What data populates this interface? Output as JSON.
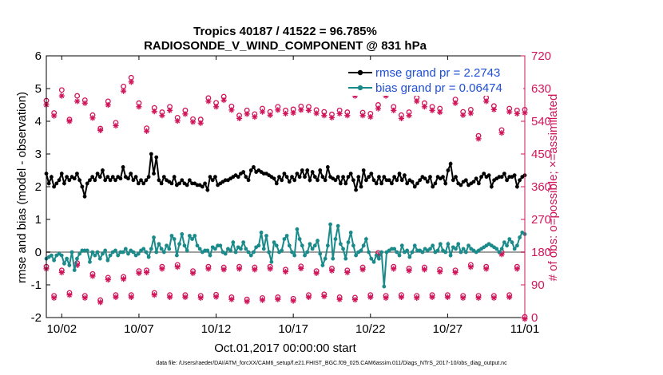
{
  "chart_data": {
    "type": "line",
    "title_line1": "Tropics 40187 / 41522 = 96.785%",
    "title_line2": "RADIOSONDE_V_WIND_COMPONENT @ 831 hPa",
    "xlabel": "Oct.01,2017 00:00:00 start",
    "ylabel_left": "rmse and bias (model - observation)",
    "ylabel_right": "# of obs: o=possible; ×=assimilated",
    "footnote": "data file: /Users/raeder/DAI/ATM_forcXX/CAM6_setup/f.e21.FHIST_BGC.f09_025.CAM6assim.011/Diags_NTrS_2017-10/obs_diag_output.nc",
    "x_ticks": [
      {
        "x": 1.5,
        "label": "10/02"
      },
      {
        "x": 6.5,
        "label": "10/07"
      },
      {
        "x": 11.5,
        "label": "10/12"
      },
      {
        "x": 16.5,
        "label": "10/17"
      },
      {
        "x": 21.5,
        "label": "10/22"
      },
      {
        "x": 26.5,
        "label": "10/27"
      },
      {
        "x": 31.5,
        "label": "11/01"
      }
    ],
    "xlim": [
      0.5,
      31.5
    ],
    "ylim_left": [
      -2,
      6
    ],
    "y_ticks_left": [
      "-2",
      "-1",
      "0",
      "1",
      "2",
      "3",
      "4",
      "5",
      "6"
    ],
    "ylim_right": [
      0,
      720
    ],
    "y_ticks_right": [
      "0",
      "90",
      "180",
      "270",
      "360",
      "450",
      "540",
      "630",
      "720"
    ],
    "legend": [
      {
        "label": "rmse grand pr = 2.2743",
        "color": "#000000"
      },
      {
        "label": "bias grand pr = 0.06474",
        "color": "#1a8a8a"
      }
    ],
    "colors": {
      "rmse": "#000000",
      "bias": "#1a8a8a",
      "obs": "#d0155a",
      "zero_line": "#a0a0a0",
      "right_axis": "#d0155a"
    },
    "series": [
      {
        "name": "rmse",
        "values": [
          2.4,
          2.1,
          2.3,
          2.0,
          2.1,
          2.2,
          2.4,
          2.1,
          2.3,
          2.2,
          2.3,
          2.25,
          2.4,
          2.2,
          2.0,
          1.7,
          2.1,
          2.2,
          2.3,
          2.2,
          2.4,
          2.3,
          2.5,
          2.2,
          2.3,
          2.2,
          2.3,
          2.2,
          2.3,
          2.25,
          2.6,
          2.3,
          2.25,
          2.4,
          2.2,
          2.3,
          2.1,
          2.2,
          2.1,
          2.2,
          2.3,
          3.0,
          2.4,
          2.9,
          2.2,
          2.1,
          2.3,
          2.2,
          2.15,
          2.1,
          2.3,
          2.05,
          2.1,
          2.2,
          2.1,
          2.05,
          2.2,
          2.1,
          2.1,
          2.05,
          2.05,
          2.0,
          2.1,
          1.9,
          2.3,
          2.2,
          2.3,
          2.05,
          2.1,
          2.15,
          2.2,
          2.2,
          2.25,
          2.3,
          2.35,
          2.3,
          2.4,
          2.45,
          2.3,
          2.2,
          2.5,
          2.6,
          2.45,
          2.5,
          2.45,
          2.4,
          2.4,
          2.35,
          2.3,
          2.25,
          2.1,
          2.3,
          2.2,
          2.4,
          2.3,
          2.15,
          2.3,
          2.2,
          2.4,
          2.3,
          2.5,
          2.3,
          2.5,
          2.2,
          2.45,
          2.3,
          2.2,
          2.5,
          2.3,
          2.2,
          2.6,
          2.3,
          2.25,
          2.2,
          2.3,
          2.1,
          2.3,
          2.1,
          2.3,
          2.4,
          2.2,
          1.9,
          2.3,
          2.0,
          2.5,
          2.2,
          2.3,
          2.4,
          2.2,
          2.1,
          2.3,
          2.1,
          2.3,
          2.2,
          2.2,
          2.1,
          2.3,
          2.2,
          2.4,
          2.2,
          2.35,
          2.1,
          2.2,
          2.15,
          2.0,
          2.1,
          2.2,
          2.3,
          2.25,
          2.15,
          2.3,
          2.0,
          2.1,
          2.3,
          2.25,
          2.3,
          2.1,
          2.5,
          2.7,
          2.2,
          2.3,
          2.1,
          2.05,
          2.15,
          2.2,
          2.05,
          2.1,
          2.15,
          2.25,
          2.1,
          2.3,
          2.4,
          2.3,
          2.35,
          2.0,
          2.2,
          2.25,
          2.3,
          2.3,
          2.4,
          2.2,
          2.3,
          2.3,
          2.35,
          2.0,
          2.2,
          2.3,
          2.35
        ]
      },
      {
        "name": "bias",
        "values": [
          -0.2,
          -0.15,
          -0.1,
          -0.25,
          -0.1,
          -0.05,
          -0.1,
          -0.35,
          -0.2,
          -0.4,
          0.0,
          -0.55,
          -0.2,
          -0.05,
          0.05,
          0.05,
          0.05,
          -0.3,
          0.0,
          -0.1,
          0.0,
          -0.2,
          -0.05,
          0.05,
          -0.25,
          -0.1,
          0.0,
          0.05,
          -0.1,
          0.0,
          0.0,
          0.1,
          -0.05,
          0.05,
          0.0,
          -0.1,
          -0.05,
          0.05,
          0.1,
          0.0,
          -0.15,
          0.1,
          0.45,
          0.0,
          0.25,
          0.1,
          0.0,
          0.2,
          0.1,
          0.5,
          0.4,
          -0.1,
          0.25,
          0.55,
          0.2,
          0.05,
          0.5,
          0.4,
          0.5,
          0.2,
          0.1,
          0.0,
          0.05,
          0.05,
          -0.1,
          0.15,
          0.1,
          0.2,
          0.2,
          0.0,
          -0.05,
          0.1,
          0.05,
          0.3,
          0.0,
          0.15,
          0.1,
          0.3,
          0.1,
          0.0,
          -0.1,
          0.0,
          0.15,
          0.2,
          0.6,
          0.1,
          0.5,
          0.0,
          -0.3,
          0.3,
          0.2,
          0.0,
          0.05,
          0.4,
          0.5,
          0.2,
          0.0,
          -0.1,
          0.7,
          0.4,
          0.2,
          -0.1,
          0.0,
          0.25,
          0.1,
          0.2,
          0.35,
          -0.05,
          -0.4,
          -0.2,
          0.2,
          0.85,
          -0.2,
          0.4,
          0.8,
          0.25,
          0.1,
          -0.2,
          0.3,
          0.6,
          0.2,
          -0.1,
          0.0,
          0.05,
          0.2,
          0.4,
          0.0,
          -0.2,
          -0.3,
          -0.1,
          -0.2,
          0.0,
          -1.05,
          0.0,
          0.05,
          0.1,
          0.1,
          0.0,
          -0.1,
          0.2,
          0.0,
          0.05,
          -0.15,
          0.0,
          0.2,
          0.05,
          0.05,
          0.0,
          0.1,
          0.05,
          0.1,
          0.2,
          0.0,
          0.05,
          0.25,
          0.05,
          0.0,
          0.25,
          -0.1,
          0.15,
          0.1,
          0.25,
          0.0,
          0.1,
          0.0,
          0.2,
          0.1,
          0.05,
          0.0,
          0.05,
          0.1,
          0.15,
          0.2,
          0.25,
          0.2,
          0.15,
          0.1,
          0.0,
          0.1,
          0.3,
          0.2,
          0.4,
          0.3,
          0.1,
          0.2,
          0.45,
          0.6,
          0.55
        ]
      }
    ],
    "obs_possible": [
      {
        "x": 0.5,
        "v": 597
      },
      {
        "x": 1.0,
        "v": 563
      },
      {
        "x": 1.5,
        "v": 626
      },
      {
        "x": 2.0,
        "v": 545
      },
      {
        "x": 2.5,
        "v": 610
      },
      {
        "x": 3.0,
        "v": 598
      },
      {
        "x": 3.5,
        "v": 557
      },
      {
        "x": 4.0,
        "v": 520
      },
      {
        "x": 4.5,
        "v": 595
      },
      {
        "x": 5.0,
        "v": 536
      },
      {
        "x": 5.5,
        "v": 636
      },
      {
        "x": 6.0,
        "v": 660
      },
      {
        "x": 6.5,
        "v": 590
      },
      {
        "x": 7.0,
        "v": 521
      },
      {
        "x": 7.5,
        "v": 577
      },
      {
        "x": 8.0,
        "v": 565
      },
      {
        "x": 8.5,
        "v": 580
      },
      {
        "x": 9.0,
        "v": 550
      },
      {
        "x": 9.5,
        "v": 570
      },
      {
        "x": 10.0,
        "v": 546
      },
      {
        "x": 10.5,
        "v": 545
      },
      {
        "x": 11.0,
        "v": 604
      },
      {
        "x": 11.5,
        "v": 591
      },
      {
        "x": 12.0,
        "v": 608
      },
      {
        "x": 12.5,
        "v": 581
      },
      {
        "x": 13.0,
        "v": 556
      },
      {
        "x": 13.5,
        "v": 570
      },
      {
        "x": 14.0,
        "v": 560
      },
      {
        "x": 14.5,
        "v": 575
      },
      {
        "x": 15.0,
        "v": 566
      },
      {
        "x": 15.5,
        "v": 580
      },
      {
        "x": 16.0,
        "v": 570
      },
      {
        "x": 16.5,
        "v": 573
      },
      {
        "x": 17.0,
        "v": 581
      },
      {
        "x": 17.5,
        "v": 580
      },
      {
        "x": 18.0,
        "v": 571
      },
      {
        "x": 18.5,
        "v": 566
      },
      {
        "x": 19.0,
        "v": 559
      },
      {
        "x": 19.5,
        "v": 570
      },
      {
        "x": 20.0,
        "v": 565
      },
      {
        "x": 20.5,
        "v": 620
      },
      {
        "x": 21.0,
        "v": 564
      },
      {
        "x": 21.5,
        "v": 561
      },
      {
        "x": 22.0,
        "v": 585
      },
      {
        "x": 22.5,
        "v": 620
      },
      {
        "x": 23.0,
        "v": 580
      },
      {
        "x": 23.5,
        "v": 557
      },
      {
        "x": 24.0,
        "v": 565
      },
      {
        "x": 24.5,
        "v": 605
      },
      {
        "x": 25.0,
        "v": 590
      },
      {
        "x": 25.5,
        "v": 580
      },
      {
        "x": 26.0,
        "v": 575
      },
      {
        "x": 26.5,
        "v": 640
      },
      {
        "x": 27.0,
        "v": 600
      },
      {
        "x": 27.5,
        "v": 566
      },
      {
        "x": 28.0,
        "v": 572
      },
      {
        "x": 28.5,
        "v": 500
      },
      {
        "x": 29.0,
        "v": 605
      },
      {
        "x": 29.5,
        "v": 582
      },
      {
        "x": 30.0,
        "v": 516
      },
      {
        "x": 30.5,
        "v": 575
      },
      {
        "x": 31.0,
        "v": 570
      },
      {
        "x": 31.5,
        "v": 572
      }
    ],
    "obs_assimilated": [
      {
        "x": 0.5,
        "v": 585
      },
      {
        "x": 1.0,
        "v": 555
      },
      {
        "x": 1.5,
        "v": 610
      },
      {
        "x": 2.0,
        "v": 540
      },
      {
        "x": 2.5,
        "v": 595
      },
      {
        "x": 3.0,
        "v": 590
      },
      {
        "x": 3.5,
        "v": 549
      },
      {
        "x": 4.0,
        "v": 515
      },
      {
        "x": 4.5,
        "v": 585
      },
      {
        "x": 5.0,
        "v": 528
      },
      {
        "x": 5.5,
        "v": 623
      },
      {
        "x": 6.0,
        "v": 648
      },
      {
        "x": 6.5,
        "v": 580
      },
      {
        "x": 7.0,
        "v": 513
      },
      {
        "x": 7.5,
        "v": 567
      },
      {
        "x": 8.0,
        "v": 556
      },
      {
        "x": 8.5,
        "v": 570
      },
      {
        "x": 9.0,
        "v": 541
      },
      {
        "x": 9.5,
        "v": 560
      },
      {
        "x": 10.0,
        "v": 538
      },
      {
        "x": 10.5,
        "v": 535
      },
      {
        "x": 11.0,
        "v": 595
      },
      {
        "x": 11.5,
        "v": 580
      },
      {
        "x": 12.0,
        "v": 598
      },
      {
        "x": 12.5,
        "v": 571
      },
      {
        "x": 13.0,
        "v": 548
      },
      {
        "x": 13.5,
        "v": 560
      },
      {
        "x": 14.0,
        "v": 552
      },
      {
        "x": 14.5,
        "v": 566
      },
      {
        "x": 15.0,
        "v": 557
      },
      {
        "x": 15.5,
        "v": 571
      },
      {
        "x": 16.0,
        "v": 561
      },
      {
        "x": 16.5,
        "v": 563
      },
      {
        "x": 17.0,
        "v": 571
      },
      {
        "x": 17.5,
        "v": 570
      },
      {
        "x": 18.0,
        "v": 562
      },
      {
        "x": 18.5,
        "v": 556
      },
      {
        "x": 19.0,
        "v": 550
      },
      {
        "x": 19.5,
        "v": 561
      },
      {
        "x": 20.0,
        "v": 556
      },
      {
        "x": 20.5,
        "v": 610
      },
      {
        "x": 21.0,
        "v": 556
      },
      {
        "x": 21.5,
        "v": 552
      },
      {
        "x": 22.0,
        "v": 575
      },
      {
        "x": 22.5,
        "v": 610
      },
      {
        "x": 23.0,
        "v": 570
      },
      {
        "x": 23.5,
        "v": 548
      },
      {
        "x": 24.0,
        "v": 556
      },
      {
        "x": 24.5,
        "v": 595
      },
      {
        "x": 25.0,
        "v": 580
      },
      {
        "x": 25.5,
        "v": 570
      },
      {
        "x": 26.0,
        "v": 565
      },
      {
        "x": 26.5,
        "v": 628
      },
      {
        "x": 27.0,
        "v": 590
      },
      {
        "x": 27.5,
        "v": 557
      },
      {
        "x": 28.0,
        "v": 562
      },
      {
        "x": 28.5,
        "v": 492
      },
      {
        "x": 29.0,
        "v": 595
      },
      {
        "x": 29.5,
        "v": 572
      },
      {
        "x": 30.0,
        "v": 508
      },
      {
        "x": 30.5,
        "v": 566
      },
      {
        "x": 31.0,
        "v": 561
      },
      {
        "x": 31.5,
        "v": 563
      }
    ],
    "obs_low_possible": [
      {
        "x": 0.5,
        "v": 140
      },
      {
        "x": 1.0,
        "v": 60
      },
      {
        "x": 1.5,
        "v": 130
      },
      {
        "x": 2.0,
        "v": 68
      },
      {
        "x": 2.5,
        "v": 150
      },
      {
        "x": 3.0,
        "v": 60
      },
      {
        "x": 3.5,
        "v": 120
      },
      {
        "x": 4.0,
        "v": 48
      },
      {
        "x": 4.5,
        "v": 110
      },
      {
        "x": 5.0,
        "v": 62
      },
      {
        "x": 5.5,
        "v": 112
      },
      {
        "x": 6.0,
        "v": 62
      },
      {
        "x": 6.5,
        "v": 128
      },
      {
        "x": 7.0,
        "v": 130
      },
      {
        "x": 7.5,
        "v": 68
      },
      {
        "x": 8.0,
        "v": 140
      },
      {
        "x": 8.5,
        "v": 62
      },
      {
        "x": 9.0,
        "v": 145
      },
      {
        "x": 9.5,
        "v": 62
      },
      {
        "x": 10.0,
        "v": 128
      },
      {
        "x": 10.5,
        "v": 60
      },
      {
        "x": 11.0,
        "v": 140
      },
      {
        "x": 11.5,
        "v": 63
      },
      {
        "x": 12.0,
        "v": 138
      },
      {
        "x": 12.5,
        "v": 56
      },
      {
        "x": 13.0,
        "v": 140
      },
      {
        "x": 13.5,
        "v": 50
      },
      {
        "x": 14.0,
        "v": 138
      },
      {
        "x": 14.5,
        "v": 54
      },
      {
        "x": 15.0,
        "v": 140
      },
      {
        "x": 15.5,
        "v": 56
      },
      {
        "x": 16.0,
        "v": 132
      },
      {
        "x": 16.5,
        "v": 52
      },
      {
        "x": 17.0,
        "v": 141
      },
      {
        "x": 17.5,
        "v": 62
      },
      {
        "x": 18.0,
        "v": 128
      },
      {
        "x": 18.5,
        "v": 64
      },
      {
        "x": 19.0,
        "v": 135
      },
      {
        "x": 19.5,
        "v": 56
      },
      {
        "x": 20.0,
        "v": 130
      },
      {
        "x": 20.5,
        "v": 55
      },
      {
        "x": 21.0,
        "v": 138
      },
      {
        "x": 21.5,
        "v": 62
      },
      {
        "x": 22.0,
        "v": 178
      },
      {
        "x": 22.5,
        "v": 60
      },
      {
        "x": 23.0,
        "v": 140
      },
      {
        "x": 23.5,
        "v": 62
      },
      {
        "x": 24.0,
        "v": 135
      },
      {
        "x": 24.5,
        "v": 60
      },
      {
        "x": 25.0,
        "v": 138
      },
      {
        "x": 25.5,
        "v": 62
      },
      {
        "x": 26.0,
        "v": 132
      },
      {
        "x": 26.5,
        "v": 62
      },
      {
        "x": 27.0,
        "v": 130
      },
      {
        "x": 27.5,
        "v": 60
      },
      {
        "x": 28.0,
        "v": 145
      },
      {
        "x": 28.5,
        "v": 60
      },
      {
        "x": 29.0,
        "v": 140
      },
      {
        "x": 29.5,
        "v": 60
      },
      {
        "x": 30.0,
        "v": 180
      },
      {
        "x": 30.5,
        "v": 62
      },
      {
        "x": 31.0,
        "v": 140
      },
      {
        "x": 31.5,
        "v": 2
      }
    ]
  }
}
